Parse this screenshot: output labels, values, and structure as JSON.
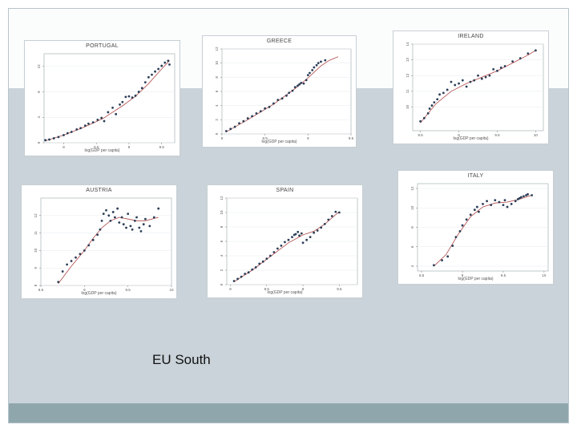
{
  "caption": "EU South",
  "chart_data": [
    {
      "type": "scatter",
      "title": "PORTUGAL",
      "xlabel": "log(GDP per capita)",
      "xlim": [
        7.7,
        9.7
      ],
      "ylim": [
        0,
        14
      ],
      "xticks": [
        8,
        8.5,
        9,
        9.5
      ],
      "yticks": [
        0,
        4,
        8,
        12
      ],
      "x": [
        7.72,
        7.78,
        7.85,
        7.92,
        8.0,
        8.06,
        8.12,
        8.2,
        8.26,
        8.33,
        8.38,
        8.45,
        8.52,
        8.58,
        8.62,
        8.68,
        8.75,
        8.8,
        8.86,
        8.9,
        8.95,
        9.0,
        9.05,
        9.1,
        9.15,
        9.2,
        9.25,
        9.3,
        9.35,
        9.4,
        9.45,
        9.5,
        9.55,
        9.6,
        9.62
      ],
      "y": [
        0.4,
        0.5,
        0.7,
        0.9,
        1.2,
        1.5,
        1.7,
        2.1,
        2.3,
        2.7,
        3.0,
        3.2,
        3.6,
        3.9,
        3.4,
        4.8,
        5.5,
        4.5,
        6.0,
        6.4,
        7.2,
        7.3,
        7.1,
        7.4,
        8.0,
        8.6,
        9.5,
        10.3,
        10.7,
        11.2,
        11.6,
        12.1,
        12.6,
        12.9,
        12.3
      ],
      "fit_x": [
        7.72,
        8.0,
        8.3,
        8.6,
        8.9,
        9.1,
        9.3,
        9.5,
        9.62
      ],
      "fit_y": [
        0.3,
        1.2,
        2.4,
        3.8,
        5.8,
        7.3,
        9.3,
        11.6,
        12.9
      ]
    },
    {
      "type": "scatter",
      "title": "GREECE",
      "xlabel": "log(GDP per capita)",
      "xlim": [
        8.0,
        9.5
      ],
      "ylim": [
        0,
        12
      ],
      "xticks": [
        8,
        8.5,
        9,
        9.5
      ],
      "yticks": [
        0,
        2,
        4,
        6,
        8,
        10,
        12
      ],
      "x": [
        8.05,
        8.1,
        8.15,
        8.2,
        8.25,
        8.3,
        8.35,
        8.4,
        8.45,
        8.5,
        8.55,
        8.6,
        8.65,
        8.7,
        8.75,
        8.78,
        8.82,
        8.85,
        8.88,
        8.9,
        8.92,
        8.95,
        8.98,
        9.0,
        9.02,
        9.05,
        9.07,
        9.1,
        9.12,
        9.15,
        9.2
      ],
      "y": [
        0.4,
        0.7,
        1.0,
        1.5,
        1.8,
        2.2,
        2.5,
        2.9,
        3.2,
        3.6,
        3.8,
        4.3,
        4.8,
        5.0,
        5.4,
        5.8,
        6.1,
        6.6,
        6.8,
        7.0,
        7.2,
        7.1,
        7.6,
        8.3,
        8.6,
        9.0,
        9.4,
        9.7,
        10.0,
        10.2,
        10.4
      ],
      "fit_x": [
        8.05,
        8.3,
        8.6,
        8.85,
        9.0,
        9.15,
        9.25,
        9.35
      ],
      "fit_y": [
        0.3,
        2.0,
        4.2,
        6.4,
        7.9,
        9.6,
        10.4,
        10.9
      ]
    },
    {
      "type": "scatter",
      "title": "IRELAND",
      "xlabel": "log(GDP per capita)",
      "xlim": [
        8.4,
        10.1
      ],
      "ylim": [
        8.5,
        14
      ],
      "xticks": [
        8.5,
        9,
        9.5,
        10
      ],
      "yticks": [
        10,
        11,
        12,
        13,
        14
      ],
      "x": [
        8.5,
        8.55,
        8.6,
        8.62,
        8.65,
        8.68,
        8.72,
        8.75,
        8.8,
        8.85,
        8.9,
        8.95,
        9.0,
        9.05,
        9.1,
        9.15,
        9.2,
        9.25,
        9.3,
        9.35,
        9.4,
        9.45,
        9.5,
        9.55,
        9.6,
        9.7,
        9.8,
        9.9,
        10.0
      ],
      "y": [
        9.1,
        9.3,
        9.6,
        9.9,
        10.1,
        10.3,
        10.5,
        10.8,
        10.9,
        11.1,
        11.6,
        11.4,
        11.5,
        11.7,
        11.3,
        11.6,
        11.7,
        12.0,
        11.8,
        11.9,
        12.0,
        12.4,
        12.3,
        12.5,
        12.6,
        12.9,
        13.1,
        13.4,
        13.6
      ],
      "fit_x": [
        8.5,
        8.7,
        8.9,
        9.1,
        9.3,
        9.5,
        9.7,
        9.9,
        10.0
      ],
      "fit_y": [
        9.0,
        10.2,
        11.0,
        11.5,
        11.9,
        12.3,
        12.8,
        13.3,
        13.6
      ]
    },
    {
      "type": "scatter",
      "title": "AUSTRIA",
      "xlabel": "log(GDP per capita)",
      "xlim": [
        8.5,
        10
      ],
      "ylim": [
        8,
        13
      ],
      "xticks": [
        8.5,
        9,
        9.5,
        10
      ],
      "yticks": [
        8,
        9,
        10,
        11,
        12
      ],
      "x": [
        8.7,
        8.75,
        8.8,
        8.85,
        8.9,
        8.95,
        9.0,
        9.05,
        9.1,
        9.15,
        9.18,
        9.2,
        9.22,
        9.25,
        9.28,
        9.3,
        9.33,
        9.35,
        9.38,
        9.4,
        9.43,
        9.45,
        9.48,
        9.5,
        9.53,
        9.55,
        9.58,
        9.6,
        9.63,
        9.65,
        9.68,
        9.7,
        9.75,
        9.8,
        9.85
      ],
      "y": [
        8.2,
        8.8,
        9.2,
        9.4,
        9.6,
        9.8,
        10.0,
        10.3,
        10.6,
        10.9,
        11.2,
        11.7,
        12.1,
        12.3,
        12.0,
        11.7,
        12.2,
        11.9,
        12.4,
        11.6,
        11.9,
        11.5,
        11.3,
        12.1,
        11.4,
        11.2,
        11.7,
        11.9,
        11.3,
        11.1,
        11.5,
        11.8,
        11.4,
        11.9,
        12.4
      ],
      "fit_x": [
        8.7,
        8.85,
        9.0,
        9.1,
        9.2,
        9.3,
        9.4,
        9.5,
        9.6,
        9.7,
        9.85
      ],
      "fit_y": [
        8.1,
        9.1,
        10.0,
        10.7,
        11.3,
        11.7,
        11.9,
        11.8,
        11.7,
        11.7,
        11.9
      ]
    },
    {
      "type": "scatter",
      "title": "SPAIN",
      "xlabel": "log(GDP per capita)",
      "xlim": [
        7.95,
        9.75
      ],
      "ylim": [
        0,
        12
      ],
      "xticks": [
        8,
        8.5,
        9,
        9.5
      ],
      "yticks": [
        0,
        2,
        4,
        6,
        8,
        10,
        12
      ],
      "x": [
        8.05,
        8.1,
        8.15,
        8.2,
        8.25,
        8.3,
        8.35,
        8.4,
        8.45,
        8.5,
        8.55,
        8.6,
        8.65,
        8.7,
        8.75,
        8.8,
        8.85,
        8.88,
        8.9,
        8.93,
        8.95,
        8.98,
        9.0,
        9.05,
        9.1,
        9.15,
        9.2,
        9.25,
        9.3,
        9.35,
        9.4,
        9.45,
        9.5
      ],
      "y": [
        0.5,
        0.8,
        1.1,
        1.5,
        1.7,
        2.1,
        2.4,
        2.9,
        3.2,
        3.6,
        4.0,
        4.5,
        5.0,
        5.4,
        5.9,
        6.2,
        6.6,
        6.9,
        7.0,
        7.3,
        6.8,
        7.1,
        5.8,
        6.2,
        6.6,
        7.2,
        7.5,
        7.9,
        8.4,
        9.0,
        9.5,
        10.1,
        10.0
      ],
      "fit_x": [
        8.05,
        8.3,
        8.55,
        8.8,
        9.0,
        9.15,
        9.3,
        9.45,
        9.5
      ],
      "fit_y": [
        0.4,
        2.0,
        3.9,
        5.8,
        6.9,
        7.4,
        8.4,
        9.7,
        10.1
      ]
    },
    {
      "type": "scatter",
      "title": "ITALY",
      "xlabel": "log(GDP per capita)",
      "xlim": [
        8.45,
        10.05
      ],
      "ylim": [
        3.5,
        12.5
      ],
      "xticks": [
        8.5,
        9,
        9.5,
        10
      ],
      "yticks": [
        4,
        6,
        8,
        10,
        12
      ],
      "x": [
        8.65,
        8.75,
        8.82,
        8.88,
        8.92,
        8.97,
        9.0,
        9.05,
        9.1,
        9.15,
        9.18,
        9.2,
        9.25,
        9.3,
        9.35,
        9.4,
        9.45,
        9.5,
        9.52,
        9.55,
        9.6,
        9.65,
        9.68,
        9.7,
        9.72,
        9.75,
        9.78,
        9.8,
        9.85
      ],
      "y": [
        4.1,
        4.6,
        5.0,
        6.1,
        7.0,
        7.6,
        8.2,
        8.8,
        9.3,
        9.8,
        10.1,
        9.6,
        10.4,
        10.7,
        10.3,
        10.8,
        10.6,
        10.3,
        10.8,
        10.1,
        10.4,
        10.7,
        10.9,
        11.0,
        11.1,
        11.2,
        11.3,
        11.4,
        11.3
      ],
      "fit_x": [
        8.65,
        8.8,
        8.95,
        9.1,
        9.25,
        9.4,
        9.55,
        9.7,
        9.85
      ],
      "fit_y": [
        4.0,
        5.2,
        7.3,
        9.1,
        10.1,
        10.5,
        10.6,
        10.9,
        11.3
      ]
    }
  ]
}
